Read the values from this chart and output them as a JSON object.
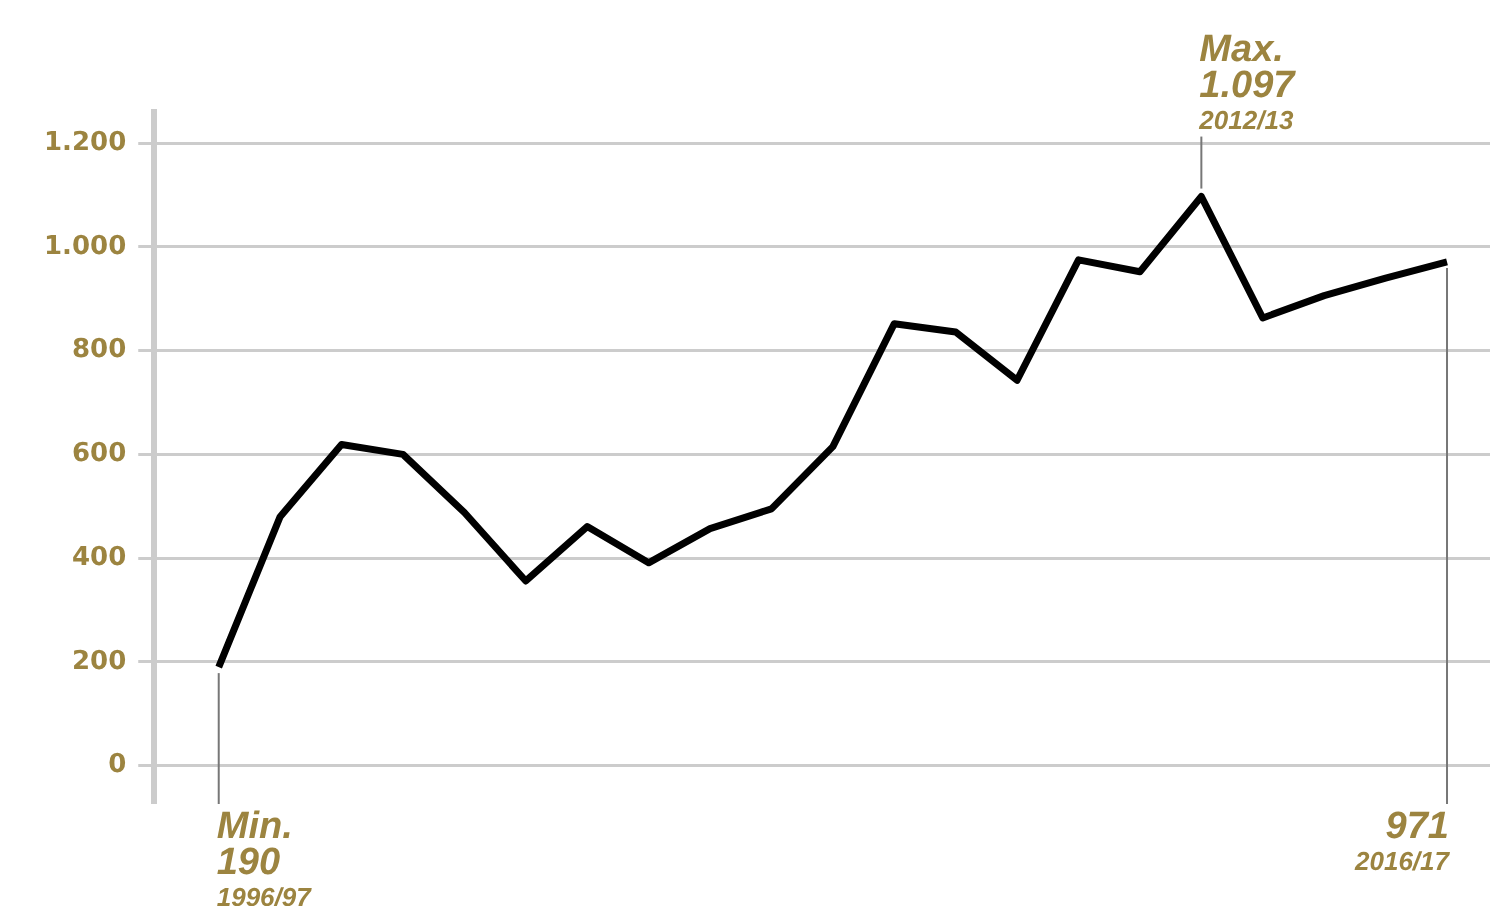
{
  "chart_data": {
    "type": "line",
    "categories": [
      null,
      null,
      null,
      null,
      null,
      null,
      null,
      null,
      null,
      null,
      null,
      null,
      null,
      null,
      null,
      null,
      null,
      null,
      null,
      null,
      null
    ],
    "series": [
      {
        "color": "#000000",
        "values": [
          190,
          480,
          619,
          600,
          488,
          356,
          461,
          391,
          457,
          495,
          615,
          852,
          836,
          743,
          975,
          952,
          1097,
          863,
          906,
          940,
          971
        ]
      }
    ],
    "ylim": [
      -70,
      1260
    ],
    "yticks": [
      0,
      200,
      400,
      600,
      800,
      {
        "value": 1000,
        "label": "1.000"
      },
      {
        "value": 1200,
        "label": "1.200"
      }
    ],
    "grid": "y",
    "legend": false,
    "marker": "none",
    "line_style": "solid",
    "tick_labels": "y",
    "annotations": [
      "Min.\n190\n1996/97",
      "Max.\n1.097\n2012/13",
      "971\n2016/17"
    ]
  }
}
